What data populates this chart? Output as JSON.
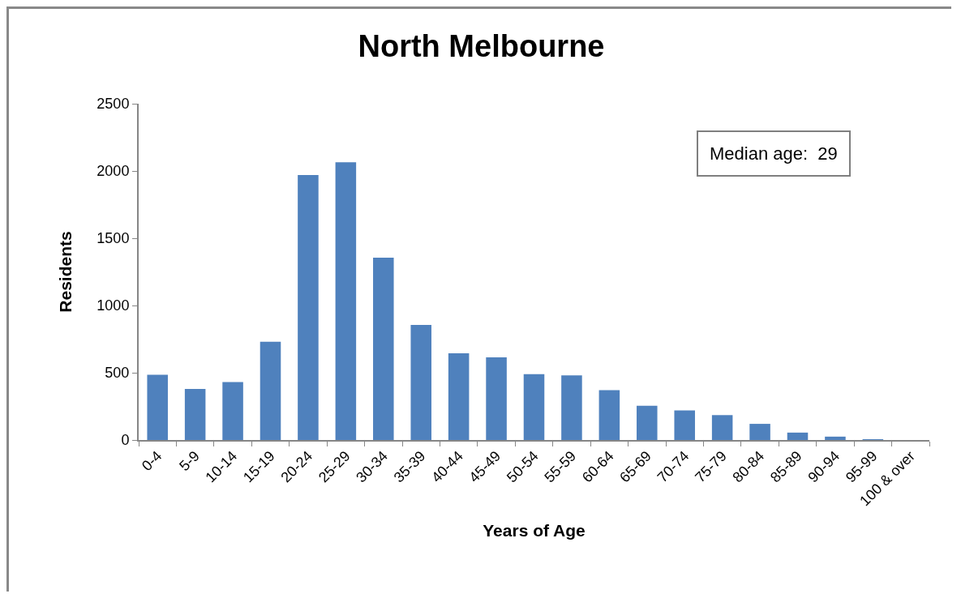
{
  "chart_data": {
    "type": "bar",
    "title": "North Melbourne",
    "xlabel": "Years of Age",
    "ylabel": "Residents",
    "categories": [
      "0-4",
      "5-9",
      "10-14",
      "15-19",
      "20-24",
      "25-29",
      "30-34",
      "35-39",
      "40-44",
      "45-49",
      "50-54",
      "55-59",
      "60-64",
      "65-69",
      "70-74",
      "75-79",
      "80-84",
      "85-89",
      "90-94",
      "95-99",
      "100 & over"
    ],
    "values": [
      485,
      380,
      430,
      730,
      1970,
      2065,
      1355,
      855,
      645,
      615,
      490,
      480,
      370,
      255,
      220,
      185,
      120,
      55,
      25,
      5,
      0
    ],
    "color": "#4f81bd",
    "ylim": [
      0,
      2500
    ],
    "yticks": [
      0,
      500,
      1000,
      1500,
      2000,
      2500
    ],
    "grid": false,
    "legend": false,
    "annotations": [
      "Median age:  29"
    ]
  }
}
